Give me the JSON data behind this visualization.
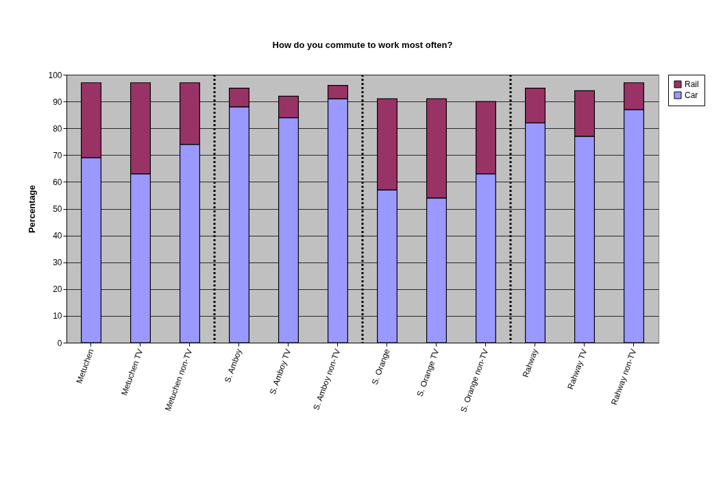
{
  "chart_data": {
    "type": "bar",
    "title": "How do you commute to work most often?",
    "ylabel": "Percentage",
    "categories": [
      "Metuchen",
      "Metuchen TV",
      "Metuchen non-TV",
      "S. Amboy",
      "S. Amboy TV",
      "S. Amboy non-TV",
      "S. Orange",
      "S. Orange TV",
      "S. Orange non-TV",
      "Rahway",
      "Rahway TV",
      "Rahway non-TV"
    ],
    "series": [
      {
        "name": "Car",
        "color": "#9999ff",
        "values": [
          69,
          63,
          74,
          88,
          84,
          91,
          57,
          54,
          63,
          82,
          77,
          87
        ]
      },
      {
        "name": "Rail",
        "color": "#993366",
        "values": [
          28,
          34,
          23,
          7,
          8,
          5,
          34,
          37,
          27,
          13,
          17,
          10
        ]
      }
    ],
    "stacked": true,
    "ylim": [
      0,
      100
    ],
    "yticks": [
      0,
      10,
      20,
      30,
      40,
      50,
      60,
      70,
      80,
      90,
      100
    ],
    "grid": "y",
    "legend": "right"
  }
}
